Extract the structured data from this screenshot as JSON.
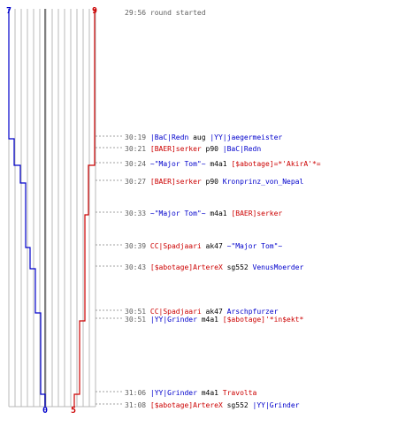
{
  "colors": {
    "team_blue": "#0000cc",
    "team_red": "#cc0000",
    "grid_line": "#b8b8b8",
    "center_line": "#808080",
    "time_text": "#606060",
    "dotted_line": "#a0a0a0",
    "action_text": "#000000",
    "background": "#ffffff"
  },
  "scores": {
    "blue_final": "7",
    "red_final": "9",
    "blue_start": "0",
    "red_start": "5"
  },
  "events": [
    {
      "time": "29:56",
      "text": "round started"
    },
    {
      "time": "30:19",
      "killer": "|BaC|Redn",
      "killer_team": "blue",
      "weapon": "aug",
      "victim": "|YY|jaegermeister",
      "victim_team": "blue"
    },
    {
      "time": "30:21",
      "killer": "[BAER]serker",
      "killer_team": "red",
      "weapon": "p90",
      "victim": "|BaC|Redn",
      "victim_team": "blue"
    },
    {
      "time": "30:24",
      "killer": "~\"Major Tom\"~",
      "killer_team": "blue",
      "weapon": "m4a1",
      "victim": "[$abotage]=*'AkirA'*=",
      "victim_team": "red"
    },
    {
      "time": "30:27",
      "killer": "[BAER]serker",
      "killer_team": "red",
      "weapon": "p90",
      "victim": "Kronprinz_von_Nepal",
      "victim_team": "blue"
    },
    {
      "time": "30:33",
      "killer": "~\"Major Tom\"~",
      "killer_team": "blue",
      "weapon": "m4a1",
      "victim": "[BAER]serker",
      "victim_team": "red"
    },
    {
      "time": "30:39",
      "killer": "CC|Spadjaari",
      "killer_team": "red",
      "weapon": "ak47",
      "victim": "~\"Major Tom\"~",
      "victim_team": "blue"
    },
    {
      "time": "30:43",
      "killer": "[$abotage]ArtereX",
      "killer_team": "red",
      "weapon": "sg552",
      "victim": "VenusMoerder",
      "victim_team": "blue"
    },
    {
      "time": "30:51",
      "killer": "CC|Spadjaari",
      "killer_team": "red",
      "weapon": "ak47",
      "victim": "Arschpfurzer",
      "victim_team": "blue"
    },
    {
      "time": "30:51",
      "killer": "|YY|Grinder",
      "killer_team": "blue",
      "weapon": "m4a1",
      "victim": "[$abotage]'*in$ekt*",
      "victim_team": "red"
    },
    {
      "time": "31:06",
      "killer": "|YY|Grinder",
      "killer_team": "blue",
      "weapon": "m4a1",
      "victim": "Travolta",
      "victim_team": "red"
    },
    {
      "time": "31:08",
      "killer": "[$abotage]ArtereX",
      "killer_team": "red",
      "weapon": "sg552",
      "victim": "|YY|Grinder",
      "victim_team": "blue"
    }
  ]
}
